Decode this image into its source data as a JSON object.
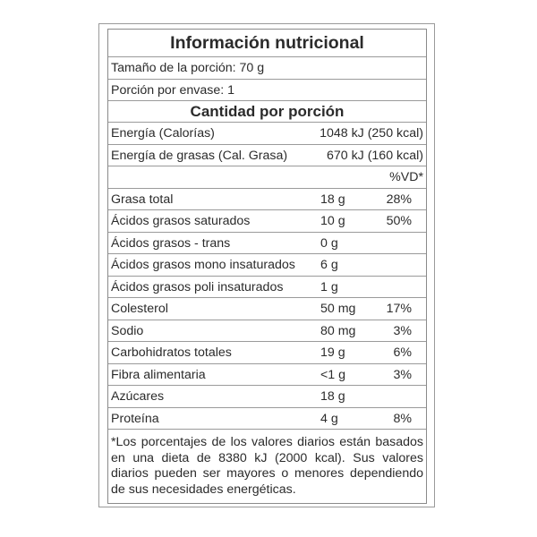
{
  "title": "Información nutricional",
  "serving_size": "Tamaño de la porción: 70 g",
  "servings_per_container": "Porción por envase: 1",
  "section_header": "Cantidad por porción",
  "energy": [
    {
      "label": "Energía (Calorías)",
      "value": "1048 kJ (250 kcal)"
    },
    {
      "label": "Energía de grasas (Cal. Grasa)",
      "value": "670 kJ (160 kcal)"
    }
  ],
  "dv_header": "%VD*",
  "nutrients": [
    {
      "label": "Grasa total",
      "amount": "18 g",
      "dv": "28%"
    },
    {
      "label": "Ácidos grasos saturados",
      "amount": "10 g",
      "dv": "50%"
    },
    {
      "label": "Ácidos grasos - trans",
      "amount": "0 g",
      "dv": ""
    },
    {
      "label": "Ácidos grasos mono insaturados",
      "amount": "6 g",
      "dv": ""
    },
    {
      "label": "Ácidos grasos poli insaturados",
      "amount": "1 g",
      "dv": ""
    },
    {
      "label": "Colesterol",
      "amount": "50 mg",
      "dv": "17%"
    },
    {
      "label": "Sodio",
      "amount": "80 mg",
      "dv": "3%"
    },
    {
      "label": "Carbohidratos totales",
      "amount": "19 g",
      "dv": "6%"
    },
    {
      "label": "Fibra alimentaria",
      "amount": "<1 g",
      "dv": "3%"
    },
    {
      "label": "Azúcares",
      "amount": "18 g",
      "dv": ""
    },
    {
      "label": "Proteína",
      "amount": "4 g",
      "dv": "8%"
    }
  ],
  "footnote": "*Los porcentajes de los valores diarios están basados en una dieta de 8380 kJ (2000 kcal). Sus valores diarios pueden ser mayores o menores dependiendo de sus necesidades energéticas."
}
